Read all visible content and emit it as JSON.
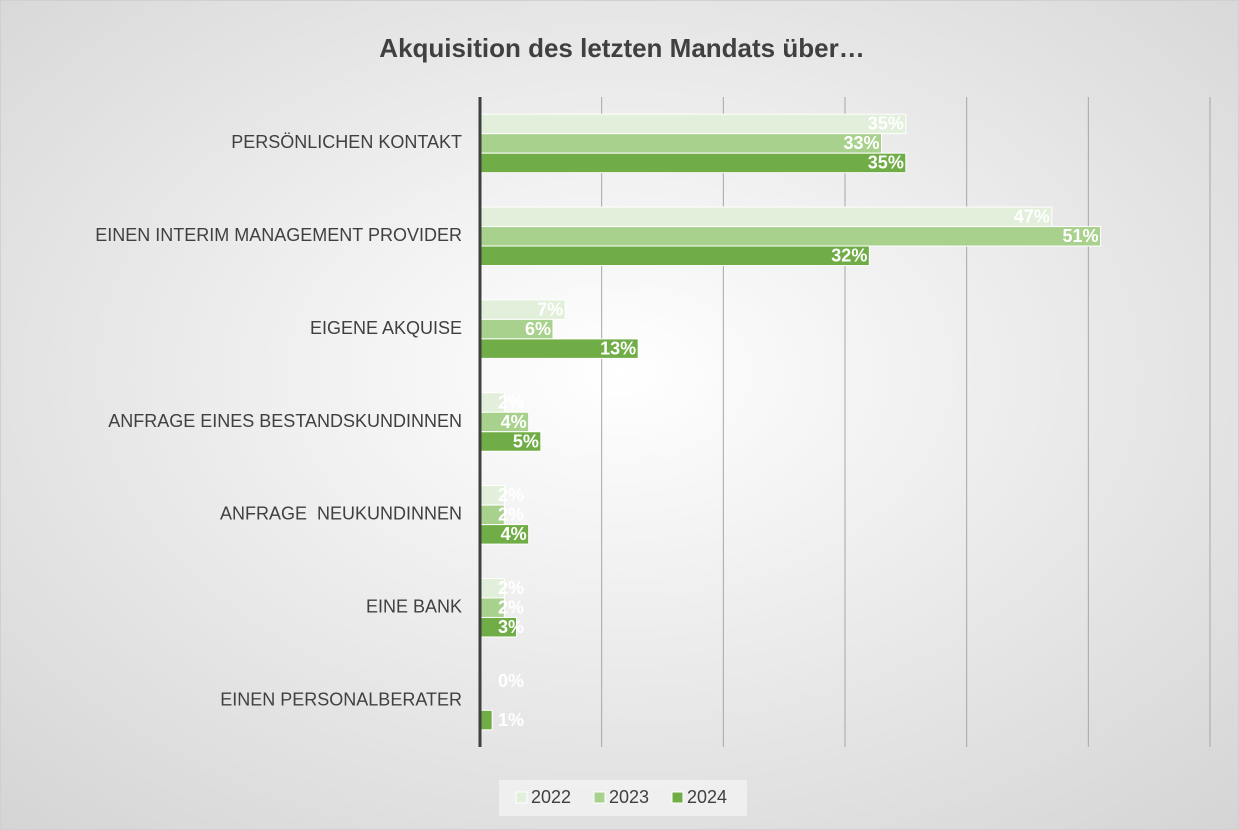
{
  "chart_data": {
    "type": "hbar",
    "title": "Akquisition des letzten Mandats über…",
    "categories": [
      "PERSÖNLICHEN KONTAKT",
      "EINEN INTERIM MANAGEMENT PROVIDER",
      "EIGENE AKQUISE",
      "ANFRAGE EINES BESTANDSKUNDINNEN",
      "ANFRAGE  NEUKUNDINNEN",
      "EINE BANK",
      "EINEN PERSONALBERATER"
    ],
    "series": [
      {
        "name": "2022",
        "color": "#e2efda",
        "values": [
          35,
          47,
          7,
          2,
          2,
          2,
          0
        ],
        "value_labels": [
          "35%",
          "47%",
          "7%",
          "2%",
          "2%",
          "2%",
          "0%"
        ]
      },
      {
        "name": "2023",
        "color": "#a9d18e",
        "values": [
          33,
          51,
          6,
          4,
          2,
          2,
          null
        ],
        "value_labels": [
          "33%",
          "51%",
          "6%",
          "4%",
          "2%",
          "2%",
          null
        ]
      },
      {
        "name": "2024",
        "color": "#70ad47",
        "values": [
          35,
          32,
          13,
          5,
          4,
          3,
          1
        ],
        "value_labels": [
          "35%",
          "32%",
          "13%",
          "5%",
          "4%",
          "3%",
          "1%"
        ]
      }
    ],
    "xlim": [
      0,
      60
    ],
    "xticks": [
      10,
      20,
      30,
      40,
      50,
      60
    ],
    "tick_labels": false,
    "grid": true,
    "legend": "bottom"
  }
}
